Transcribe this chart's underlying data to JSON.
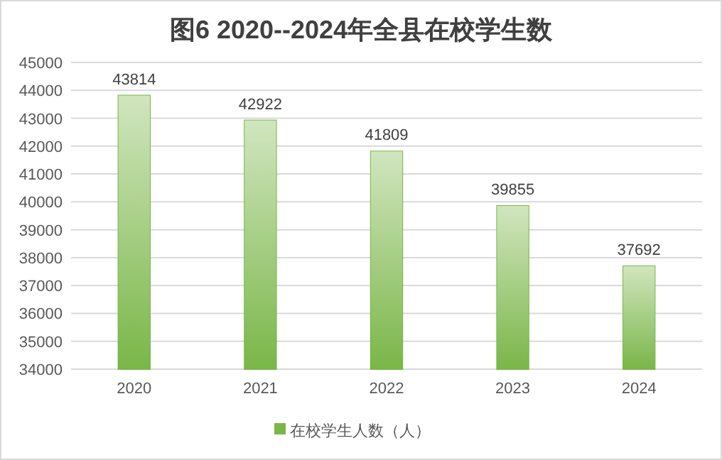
{
  "chart_data": {
    "type": "bar",
    "title": "图6 2020--2024年全县在校学生数",
    "categories": [
      "2020",
      "2021",
      "2022",
      "2023",
      "2024"
    ],
    "series": [
      {
        "name": "在校学生人数（人）",
        "color": "#7ab648",
        "values": [
          43814,
          42922,
          41809,
          39855,
          37692
        ]
      }
    ],
    "ylim": [
      34000,
      45000
    ],
    "yticks": [
      34000,
      35000,
      36000,
      37000,
      38000,
      39000,
      40000,
      41000,
      42000,
      43000,
      44000,
      45000
    ],
    "grid": "y",
    "legend": "bottom",
    "data_labels": true
  }
}
